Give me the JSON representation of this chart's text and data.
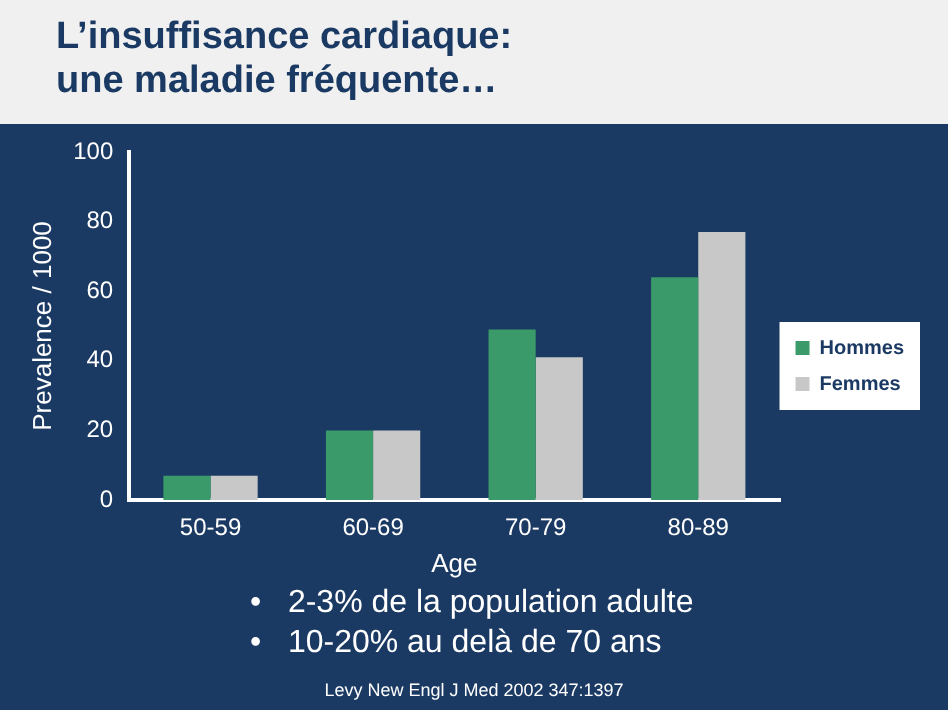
{
  "chart_data": {
    "type": "bar",
    "title": "L’insuffisance cardiaque:\nune maladie fréquente…",
    "xlabel": "Age",
    "ylabel": "Prevalence / 1000",
    "categories": [
      "50-59",
      "60-69",
      "70-79",
      "80-89"
    ],
    "series": [
      {
        "name": "Hommes",
        "color": "#3a9a6a",
        "values": [
          7,
          20,
          49,
          64
        ]
      },
      {
        "name": "Femmes",
        "color": "#c8c8c8",
        "values": [
          7,
          20,
          41,
          77
        ]
      }
    ],
    "ylim": [
      0,
      100
    ],
    "yticks": [
      0,
      20,
      40,
      60,
      80,
      100
    ],
    "grid": false,
    "legend": "right",
    "annotations": [
      "•   2-3% de la population adulte",
      "•   10-20% au delà de 70 ans",
      "Levy New Engl J Med 2002 347:1397"
    ]
  }
}
